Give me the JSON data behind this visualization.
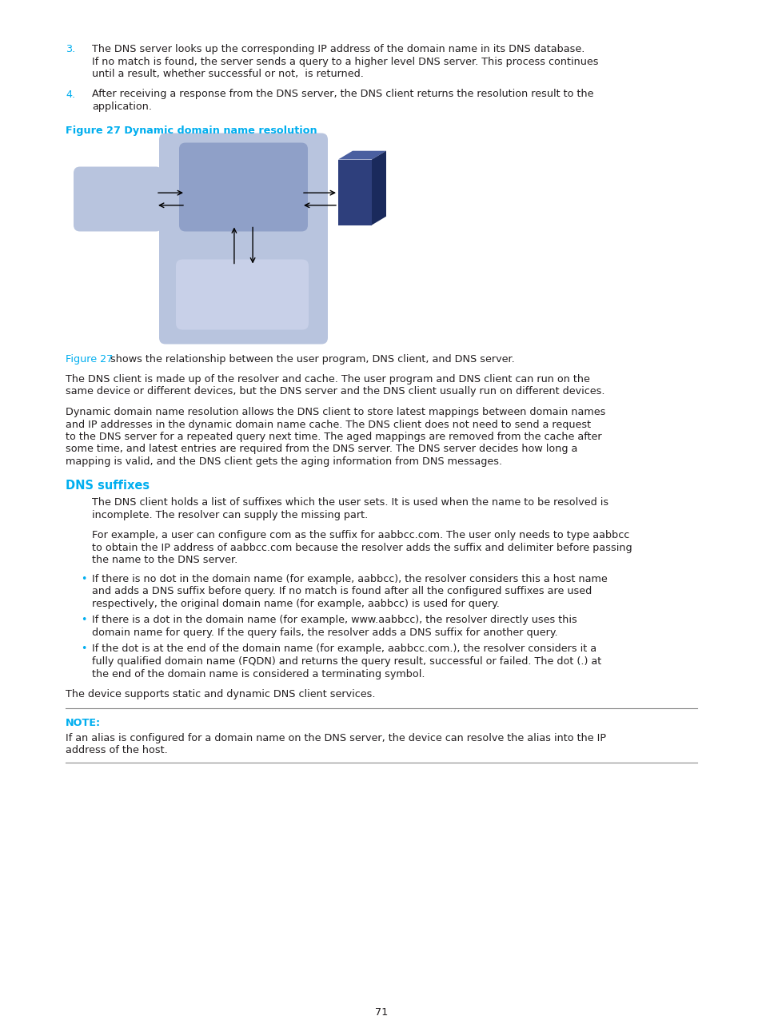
{
  "bg_color": "#ffffff",
  "text_color": "#231f20",
  "cyan_color": "#00aeef",
  "light_blue_box": "#b8c4de",
  "medium_blue_box": "#8fa0c8",
  "lighter_blue_box": "#c8d0e8",
  "dark_blue_front": "#2e3f7c",
  "dark_blue_top": "#4a5fa0",
  "dark_blue_right": "#1a2a5c",
  "page_number": "71",
  "item3_number": "3.",
  "item3_line1": "The DNS server looks up the corresponding IP address of the domain name in its DNS database.",
  "item3_line2": "If no match is found, the server sends a query to a higher level DNS server. This process continues",
  "item3_line3": "until a result, whether successful or not,  is returned.",
  "item4_number": "4.",
  "item4_line1": "After receiving a response from the DNS server, the DNS client returns the resolution result to the",
  "item4_line2": "application.",
  "figure_label": "Figure 27 Dynamic domain name resolution",
  "ref_part1": "Figure 27",
  "ref_part2": " shows the relationship between the user program, DNS client, and DNS server.",
  "para1_line1": "The DNS client is made up of the resolver and cache. The user program and DNS client can run on the",
  "para1_line2": "same device or different devices, but the DNS server and the DNS client usually run on different devices.",
  "para2_line1": "Dynamic domain name resolution allows the DNS client to store latest mappings between domain names",
  "para2_line2": "and IP addresses in the dynamic domain name cache. The DNS client does not need to send a request",
  "para2_line3": "to the DNS server for a repeated query next time. The aged mappings are removed from the cache after",
  "para2_line4": "some time, and latest entries are required from the DNS server. The DNS server decides how long a",
  "para2_line5": "mapping is valid, and the DNS client gets the aging information from DNS messages.",
  "section_title": "DNS suffixes",
  "dp1_line1": "The DNS client holds a list of suffixes which the user sets. It is used when the name to be resolved is",
  "dp1_line2": "incomplete. The resolver can supply the missing part.",
  "dp2_line1": "For example, a user can configure com as the suffix for aabbcc.com. The user only needs to type aabbcc",
  "dp2_line2": "to obtain the IP address of aabbcc.com because the resolver adds the suffix and delimiter before passing",
  "dp2_line3": "the name to the DNS server.",
  "b1_line1": "If there is no dot in the domain name (for example, aabbcc), the resolver considers this a host name",
  "b1_line2": "and adds a DNS suffix before query. If no match is found after all the configured suffixes are used",
  "b1_line3": "respectively, the original domain name (for example, aabbcc) is used for query.",
  "b2_line1": "If there is a dot in the domain name (for example, www.aabbcc), the resolver directly uses this",
  "b2_line2": "domain name for query. If the query fails, the resolver adds a DNS suffix for another query.",
  "b3_line1": "If the dot is at the end of the domain name (for example, aabbcc.com.), the resolver considers it a",
  "b3_line2": "fully qualified domain name (FQDN) and returns the query result, successful or failed. The dot (.) at",
  "b3_line3": "the end of the domain name is considered a terminating symbol.",
  "ending_text": "The device supports static and dynamic DNS client services.",
  "note_label": "NOTE:",
  "note_line1": "If an alias is configured for a domain name on the DNS server, the device can resolve the alias into the IP",
  "note_line2": "address of the host."
}
